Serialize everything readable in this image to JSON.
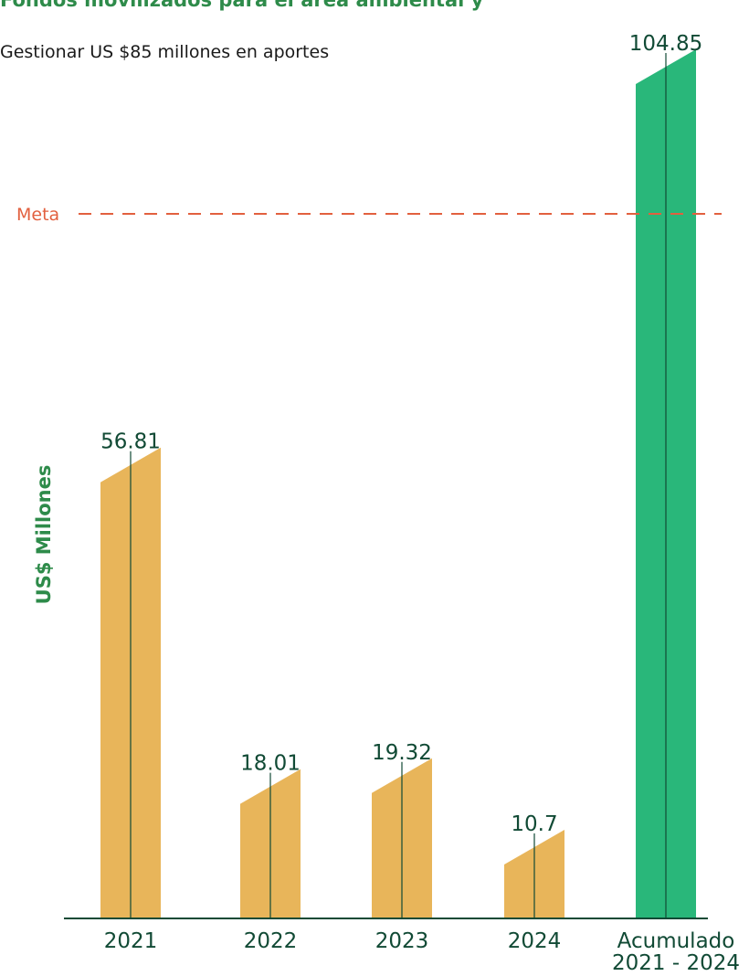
{
  "header": {
    "title": "Fondos movilizados para el área ambiental y",
    "subtitle": "Gestionar US $85 millones en aportes"
  },
  "chart_data": {
    "type": "bar",
    "categories": [
      "2021",
      "2022",
      "2023",
      "2024",
      "Acumulado\n2021 - 2024"
    ],
    "values": [
      56.81,
      18.01,
      19.32,
      10.7,
      104.85
    ],
    "value_labels": [
      "56.81",
      "18.01",
      "19.32",
      "10.7",
      "104.85"
    ],
    "ylabel": "US$ Millones",
    "ylim": [
      0,
      107
    ],
    "reference_line": {
      "label": "Meta",
      "value": 85,
      "color": "#e2603f",
      "style": "dashed"
    },
    "colors": [
      "#e8b55a",
      "#e8b55a",
      "#e8b55a",
      "#e8b55a",
      "#29b77a"
    ],
    "label_color": "#114a35",
    "axis_color": "#114a35",
    "grid": false
  }
}
